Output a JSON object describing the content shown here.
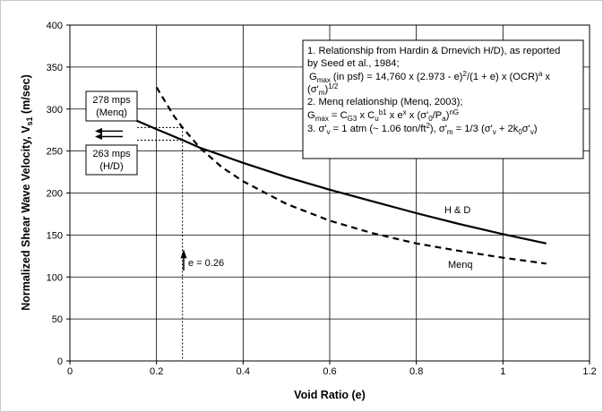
{
  "chart_data": {
    "type": "line",
    "xlabel": "Void Ratio (e)",
    "ylabel_main": "Normalized Shear Wave Velocity, V",
    "ylabel_sub": "s1",
    "ylabel_unit": " (m/sec)",
    "xlim": [
      0,
      1.2
    ],
    "ylim": [
      0,
      400
    ],
    "x_ticks": [
      "0",
      "0.2",
      "0.4",
      "0.6",
      "0.8",
      "1",
      "1.2"
    ],
    "y_ticks": [
      "0",
      "50",
      "100",
      "150",
      "200",
      "250",
      "300",
      "350",
      "400"
    ],
    "grid": true,
    "series": [
      {
        "name": "H & D",
        "style": "solid",
        "x": [
          0.15,
          0.2,
          0.26,
          0.3,
          0.4,
          0.5,
          0.6,
          0.7,
          0.8,
          0.9,
          1.0,
          1.1
        ],
        "y": [
          287,
          276,
          263,
          254,
          236,
          219,
          204,
          190,
          176,
          163,
          151,
          140
        ]
      },
      {
        "name": "Menq",
        "style": "dashed",
        "x": [
          0.2,
          0.24,
          0.26,
          0.3,
          0.35,
          0.4,
          0.5,
          0.6,
          0.7,
          0.8,
          0.9,
          1.0,
          1.1
        ],
        "y": [
          326,
          292,
          278,
          254,
          231,
          214,
          187,
          167,
          152,
          140,
          131,
          123,
          116
        ]
      }
    ],
    "annotations": {
      "menq_box": {
        "line1": "278 mps",
        "line2": "(Menq)",
        "value": 278
      },
      "hd_box": {
        "line1": "263 mps",
        "line2": "(H/D)",
        "value": 263
      },
      "e_marker": {
        "label": "e = 0.26",
        "x": 0.26
      },
      "hd_label": "H & D",
      "menq_label": "Menq"
    },
    "notes": {
      "n1_line1": "1. Relationship from Hardin & Drnevich H/D), as reported",
      "n1_line2": "by Seed et al., 1984;",
      "n1_g": "G",
      "n1_gsub": "max",
      "n1_f1": " (in psf) = 14,760 x (2.973 - e)",
      "n1_f1sup": "2",
      "n1_f2": "/(1 + e) x (OCR)",
      "n1_f2sup": "a",
      "n1_f3": " x",
      "n1_l4a": "(σ'",
      "n1_l4sub": "m",
      "n1_l4b": ")",
      "n1_l4sup": "1/2",
      "n2_line1": "2. Menq relationship  (Menq, 2003);",
      "n2_g": "G",
      "n2_gsub": "max",
      "n2_a": " = C",
      "n2_asub": "G3",
      "n2_b": " x C",
      "n2_bsub": "u",
      "n2_bsup": "b1",
      "n2_c": " x e",
      "n2_csup": "x",
      "n2_d": " x (σ'",
      "n2_dsub": "0",
      "n2_e": "/P",
      "n2_esub": "a",
      "n2_f": ")",
      "n2_fsup": "nG",
      "n3_a": "3. σ'",
      "n3_asub": "v",
      "n3_b": " = 1 atm (~ 1.06 ton/ft",
      "n3_bsup": "2",
      "n3_c": "),  σ'",
      "n3_csub": "m",
      "n3_d": " = 1/3 (σ'",
      "n3_dsub": "v",
      "n3_e": " + 2k",
      "n3_esub": "0",
      "n3_f": "σ'",
      "n3_fsub": "v",
      "n3_g": ")"
    }
  }
}
